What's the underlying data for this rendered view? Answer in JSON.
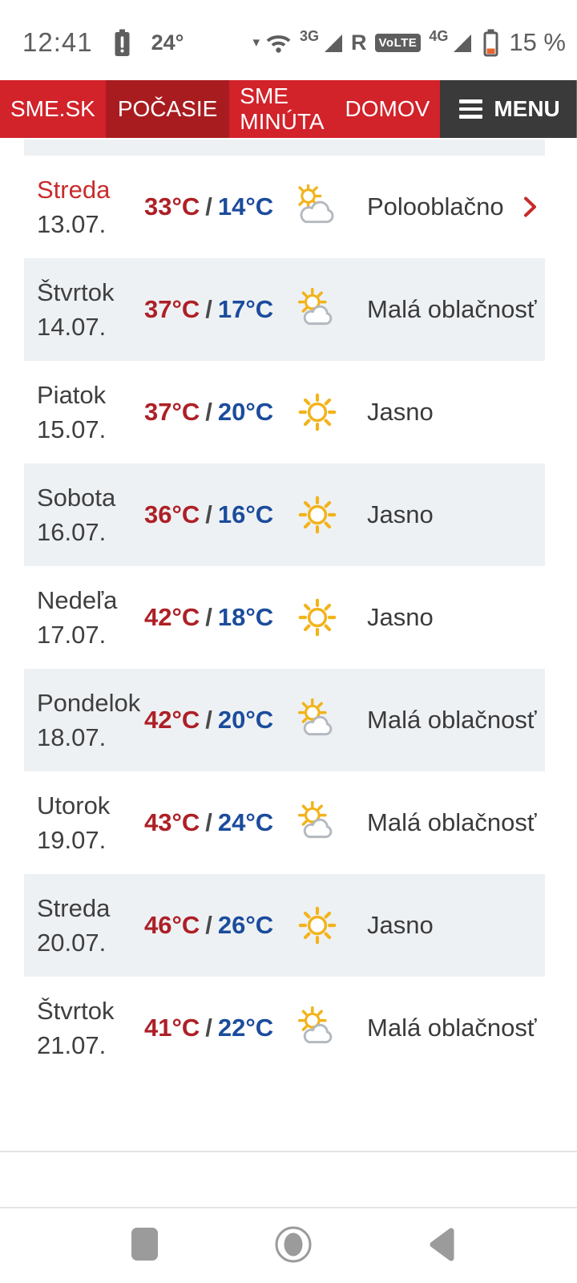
{
  "status_bar": {
    "time": "12:41",
    "temp": "24°",
    "net_3g": "3G",
    "carrier": "R",
    "volte": "VoLTE",
    "net_4g": "4G",
    "battery_percent": "15 %"
  },
  "navbar": {
    "items": [
      {
        "label": "SME.SK",
        "active": false
      },
      {
        "label": "POČASIE",
        "active": true
      },
      {
        "label": "SME MINÚTA",
        "active": false
      },
      {
        "label": "DOMOV",
        "active": false
      }
    ],
    "menu_label": "MENU"
  },
  "forecast": {
    "separator": "/",
    "rows": [
      {
        "day": "Streda",
        "date": "13.07.",
        "max": "33°C",
        "min": "14°C",
        "condition": "Polooblačno",
        "icon": "sun-big-cloud",
        "today": true,
        "chevron": true
      },
      {
        "day": "Štvrtok",
        "date": "14.07.",
        "max": "37°C",
        "min": "17°C",
        "condition": "Malá oblačnosť",
        "icon": "sun-small-cloud",
        "today": false,
        "chevron": false
      },
      {
        "day": "Piatok",
        "date": "15.07.",
        "max": "37°C",
        "min": "20°C",
        "condition": "Jasno",
        "icon": "sun",
        "today": false,
        "chevron": false
      },
      {
        "day": "Sobota",
        "date": "16.07.",
        "max": "36°C",
        "min": "16°C",
        "condition": "Jasno",
        "icon": "sun",
        "today": false,
        "chevron": false
      },
      {
        "day": "Nedeľa",
        "date": "17.07.",
        "max": "42°C",
        "min": "18°C",
        "condition": "Jasno",
        "icon": "sun",
        "today": false,
        "chevron": false
      },
      {
        "day": "Pondelok",
        "date": "18.07.",
        "max": "42°C",
        "min": "20°C",
        "condition": "Malá oblačnosť",
        "icon": "sun-small-cloud",
        "today": false,
        "chevron": false
      },
      {
        "day": "Utorok",
        "date": "19.07.",
        "max": "43°C",
        "min": "24°C",
        "condition": "Malá oblačnosť",
        "icon": "sun-small-cloud",
        "today": false,
        "chevron": false
      },
      {
        "day": "Streda",
        "date": "20.07.",
        "max": "46°C",
        "min": "26°C",
        "condition": "Jasno",
        "icon": "sun",
        "today": false,
        "chevron": false
      },
      {
        "day": "Štvrtok",
        "date": "21.07.",
        "max": "41°C",
        "min": "22°C",
        "condition": "Malá oblačnosť",
        "icon": "sun-small-cloud",
        "today": false,
        "chevron": false
      }
    ]
  },
  "colors": {
    "brand_red": "#d2222a",
    "active_red": "#a81c20",
    "menu_dark": "#3a3a3a",
    "row_alt_bg": "#eef1f4",
    "max_temp": "#ad2026",
    "min_temp": "#1b4c9c",
    "today_red": "#c92b2c",
    "sun_yellow": "#f2b31c",
    "cloud_gray": "#b3b9bf",
    "chevron_red": "#c92a2a",
    "battery_low": "#e8652e",
    "status_gray": "#5e5e5e"
  }
}
